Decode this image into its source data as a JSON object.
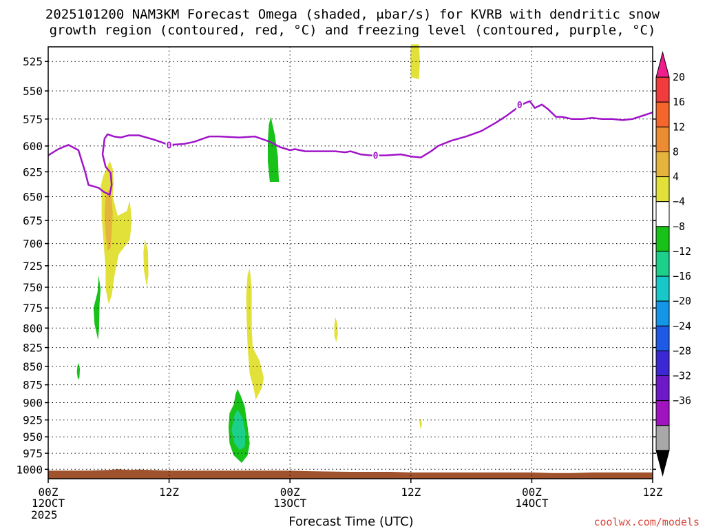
{
  "title_line1": "2025101200 NAM3KM Forecast Omega (shaded, μbar/s) for KVRB with dendritic snow",
  "title_line2": "growth region (contoured, red, °C) and freezing level (contoured, purple, °C)",
  "xlabel": "Forecast Time (UTC)",
  "credit": "coolwx.com/models",
  "chart_data": {
    "type": "heatmap",
    "title": "2025101200 NAM3KM Forecast Omega (shaded, μbar/s) for KVRB with dendritic snow growth region (contoured, red, °C) and freezing level (contoured, purple, °C)",
    "xlabel": "Forecast Time (UTC)",
    "ylabel": "",
    "x_unit": "forecast hours from 00Z 12 Oct 2025",
    "xlim": [
      0,
      60
    ],
    "ylim": [
      1015,
      513
    ],
    "y_scale": "log-pressure (inverted)",
    "x_ticks": [
      {
        "x": 0,
        "label": "00Z",
        "sub": "12OCT",
        "sub2": "2025"
      },
      {
        "x": 12,
        "label": "12Z",
        "sub": "",
        "sub2": ""
      },
      {
        "x": 24,
        "label": "00Z",
        "sub": "13OCT",
        "sub2": ""
      },
      {
        "x": 36,
        "label": "12Z",
        "sub": "",
        "sub2": ""
      },
      {
        "x": 48,
        "label": "00Z",
        "sub": "14OCT",
        "sub2": ""
      },
      {
        "x": 60,
        "label": "12Z",
        "sub": "",
        "sub2": ""
      }
    ],
    "y_ticks": [
      525,
      550,
      575,
      600,
      625,
      650,
      675,
      700,
      725,
      750,
      775,
      800,
      825,
      850,
      875,
      900,
      925,
      950,
      975,
      1000
    ],
    "grid": true,
    "colorbar": {
      "position": "right",
      "tick_labels": [
        "20",
        "16",
        "12",
        "8",
        "4",
        "-4",
        "-8",
        "-12",
        "-16",
        "-20",
        "-24",
        "-28",
        "-32",
        "-36"
      ],
      "colors": [
        "#ee1e8c",
        "#f03c3c",
        "#f5662d",
        "#eb8c32",
        "#e4b43c",
        "#e2e13a",
        "#ffffff",
        "#18c218",
        "#1cd08c",
        "#18c8c8",
        "#1496e6",
        "#1e5ae6",
        "#3c28d2",
        "#6e19c8",
        "#a014c0",
        "#a8a8a8",
        "#000000"
      ]
    },
    "freezing_level": {
      "label": "0",
      "color": "#a014c8",
      "points": [
        [
          0,
          609
        ],
        [
          1,
          603
        ],
        [
          2,
          599
        ],
        [
          3,
          604
        ],
        [
          3.7,
          626
        ],
        [
          4.0,
          638
        ],
        [
          5.0,
          641
        ],
        [
          5.5,
          645
        ],
        [
          6.1,
          648
        ],
        [
          6.3,
          638
        ],
        [
          6.2,
          626
        ],
        [
          5.7,
          620
        ],
        [
          5.4,
          608
        ],
        [
          5.6,
          593
        ],
        [
          5.9,
          589
        ],
        [
          6.5,
          591
        ],
        [
          7.2,
          592
        ],
        [
          8.0,
          590
        ],
        [
          9.0,
          590
        ],
        [
          10.5,
          594
        ],
        [
          12.0,
          599
        ],
        [
          13.5,
          598
        ],
        [
          14.5,
          596
        ],
        [
          16.0,
          591
        ],
        [
          17.0,
          591
        ],
        [
          19.0,
          592
        ],
        [
          20.5,
          591
        ],
        [
          22.0,
          596
        ],
        [
          23.0,
          601
        ],
        [
          24.0,
          604
        ],
        [
          24.5,
          603
        ],
        [
          25.5,
          605
        ],
        [
          27.0,
          605
        ],
        [
          28.5,
          605
        ],
        [
          29.5,
          606
        ],
        [
          30.0,
          605
        ],
        [
          31.0,
          608
        ],
        [
          32.0,
          609
        ],
        [
          33.5,
          609
        ],
        [
          35.0,
          608
        ],
        [
          36.0,
          610
        ],
        [
          37.0,
          611
        ],
        [
          38.0,
          605
        ],
        [
          38.7,
          600
        ],
        [
          40.0,
          595
        ],
        [
          41.5,
          591
        ],
        [
          43.0,
          586
        ],
        [
          44.5,
          578
        ],
        [
          45.5,
          572
        ],
        [
          46.4,
          566
        ],
        [
          47.0,
          562
        ],
        [
          47.8,
          559
        ],
        [
          48.3,
          565
        ],
        [
          49.0,
          562
        ],
        [
          49.6,
          566
        ],
        [
          50.4,
          573
        ],
        [
          51.0,
          573
        ],
        [
          52.0,
          575
        ],
        [
          53.0,
          575
        ],
        [
          54.0,
          574
        ],
        [
          55.0,
          575
        ],
        [
          56.0,
          575
        ],
        [
          57.0,
          576
        ],
        [
          58.0,
          575
        ],
        [
          59.0,
          572
        ],
        [
          60.0,
          569
        ]
      ],
      "label_points": [
        [
          12.0,
          599
        ],
        [
          32.5,
          609
        ],
        [
          46.8,
          562
        ]
      ]
    },
    "omega_regions": [
      {
        "value_range": "4 to 8",
        "color": "#e2e13a",
        "polygon": [
          [
            5.2,
            640
          ],
          [
            5.5,
            628
          ],
          [
            5.8,
            622
          ],
          [
            6.1,
            614
          ],
          [
            6.4,
            622
          ],
          [
            6.5,
            636
          ],
          [
            6.4,
            650
          ],
          [
            6.9,
            670
          ],
          [
            7.8,
            665
          ],
          [
            8.1,
            654
          ],
          [
            8.3,
            676
          ],
          [
            8.1,
            696
          ],
          [
            7.0,
            712
          ],
          [
            6.6,
            735
          ],
          [
            6.3,
            760
          ],
          [
            6.0,
            770
          ],
          [
            5.7,
            752
          ],
          [
            5.7,
            728
          ],
          [
            5.5,
            700
          ],
          [
            5.3,
            670
          ],
          [
            5.3,
            650
          ]
        ]
      },
      {
        "value_range": "8 to 12",
        "color": "#e4b43c",
        "polygon": [
          [
            5.7,
            651
          ],
          [
            6.0,
            643
          ],
          [
            6.3,
            650
          ],
          [
            6.4,
            668
          ],
          [
            6.3,
            688
          ],
          [
            6.2,
            705
          ],
          [
            5.9,
            708
          ],
          [
            5.7,
            690
          ],
          [
            5.6,
            668
          ]
        ]
      },
      {
        "value_range": "4 to 8",
        "color": "#e2e13a",
        "polygon": [
          [
            9.6,
            695
          ],
          [
            9.9,
            708
          ],
          [
            9.95,
            735
          ],
          [
            9.8,
            750
          ],
          [
            9.5,
            730
          ],
          [
            9.45,
            710
          ]
        ]
      },
      {
        "value_range": "-4 to -8",
        "color": "#18c218",
        "polygon": [
          [
            4.9,
            756
          ],
          [
            5.0,
            736
          ],
          [
            5.2,
            752
          ],
          [
            5.1,
            770
          ],
          [
            5.05,
            800
          ],
          [
            4.95,
            815
          ],
          [
            4.6,
            795
          ],
          [
            4.5,
            775
          ]
        ]
      },
      {
        "value_range": "-4 to -8",
        "color": "#18c218",
        "polygon": [
          [
            2.9,
            850
          ],
          [
            3.0,
            845
          ],
          [
            3.15,
            853
          ],
          [
            3.1,
            865
          ],
          [
            2.95,
            868
          ],
          [
            2.85,
            858
          ]
        ]
      },
      {
        "value_range": "4 to 8",
        "color": "#e2e13a",
        "polygon": [
          [
            19.8,
            735
          ],
          [
            20.0,
            728
          ],
          [
            20.2,
            750
          ],
          [
            20.2,
            800
          ],
          [
            20.3,
            825
          ],
          [
            21.0,
            843
          ],
          [
            21.4,
            866
          ],
          [
            21.2,
            880
          ],
          [
            21.0,
            885
          ],
          [
            20.6,
            896
          ],
          [
            20.4,
            880
          ],
          [
            20.0,
            860
          ],
          [
            19.8,
            825
          ],
          [
            19.7,
            790
          ],
          [
            19.65,
            760
          ]
        ]
      },
      {
        "value_range": "-4 to -8",
        "color": "#18c218",
        "polygon": [
          [
            18.4,
            903
          ],
          [
            18.6,
            888
          ],
          [
            18.8,
            881
          ],
          [
            19.1,
            890
          ],
          [
            19.5,
            905
          ],
          [
            19.8,
            935
          ],
          [
            20.0,
            960
          ],
          [
            19.8,
            978
          ],
          [
            19.2,
            990
          ],
          [
            18.4,
            978
          ],
          [
            18.0,
            960
          ],
          [
            17.9,
            935
          ],
          [
            18.0,
            915
          ]
        ]
      },
      {
        "value_range": "-8 to -12",
        "color": "#1cd08c",
        "polygon": [
          [
            18.5,
            918
          ],
          [
            18.8,
            910
          ],
          [
            19.3,
            922
          ],
          [
            19.6,
            945
          ],
          [
            19.5,
            965
          ],
          [
            19.0,
            970
          ],
          [
            18.5,
            960
          ],
          [
            18.2,
            940
          ]
        ]
      },
      {
        "value_range": "-4 to -8",
        "color": "#18c218",
        "polygon": [
          [
            21.9,
            580
          ],
          [
            22.1,
            573
          ],
          [
            22.5,
            590
          ],
          [
            22.8,
            610
          ],
          [
            22.9,
            635
          ],
          [
            22.0,
            635
          ],
          [
            21.8,
            615
          ],
          [
            21.8,
            595
          ]
        ]
      },
      {
        "value_range": "4 to 8",
        "color": "#e2e13a",
        "polygon": [
          [
            28.4,
            797
          ],
          [
            28.5,
            786
          ],
          [
            28.7,
            794
          ],
          [
            28.75,
            808
          ],
          [
            28.6,
            818
          ],
          [
            28.4,
            810
          ]
        ]
      },
      {
        "value_range": "4 to 8",
        "color": "#e2e13a",
        "polygon": [
          [
            36.85,
            928
          ],
          [
            36.95,
            922
          ],
          [
            37.1,
            930
          ],
          [
            37.0,
            938
          ],
          [
            36.9,
            935
          ]
        ]
      },
      {
        "value_range": "4 to 8",
        "color": "#e2e13a",
        "polygon": [
          [
            36.0,
            511
          ],
          [
            36.8,
            511
          ],
          [
            36.9,
            525
          ],
          [
            36.8,
            540
          ],
          [
            36.0,
            538
          ],
          [
            35.95,
            525
          ]
        ]
      }
    ],
    "terrain": {
      "color": "#a0522d",
      "top_points": [
        [
          0,
          1002
        ],
        [
          4,
          1002
        ],
        [
          6,
          1001
        ],
        [
          7,
          1000
        ],
        [
          8,
          1001
        ],
        [
          9,
          1000.5
        ],
        [
          10,
          1001
        ],
        [
          12,
          1002
        ],
        [
          24,
          1002
        ],
        [
          26,
          1003
        ],
        [
          30,
          1004
        ],
        [
          34,
          1004
        ],
        [
          36,
          1005
        ],
        [
          48,
          1005
        ],
        [
          50,
          1006
        ],
        [
          52,
          1006
        ],
        [
          54,
          1005
        ],
        [
          60,
          1005
        ]
      ]
    }
  }
}
